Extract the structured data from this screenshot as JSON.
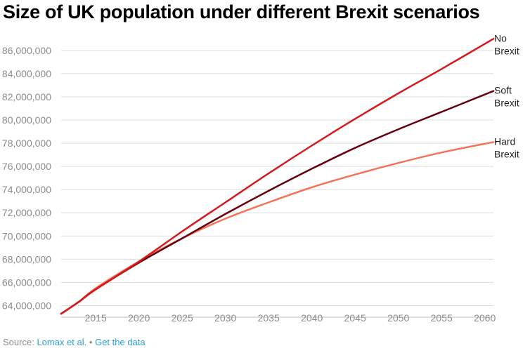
{
  "title": "Size of UK population under different Brexit scenarios",
  "footer": {
    "source_label": "Source:",
    "source_link": "Lomax et al.",
    "separator": "•",
    "data_link": "Get the data"
  },
  "chart_data": {
    "type": "line",
    "title": "Size of UK population under different Brexit scenarios",
    "xlabel": "",
    "ylabel": "",
    "xlim": [
      2011,
      2061
    ],
    "ylim": [
      63000000,
      87200000
    ],
    "x_ticks": [
      2015,
      2020,
      2025,
      2030,
      2035,
      2040,
      2045,
      2050,
      2055,
      2060
    ],
    "x_tick_labels": [
      "2015",
      "2020",
      "2025",
      "2030",
      "2035",
      "2040",
      "2045",
      "2050",
      "2055",
      "2060"
    ],
    "y_ticks": [
      64000000,
      66000000,
      68000000,
      70000000,
      72000000,
      74000000,
      76000000,
      78000000,
      80000000,
      82000000,
      84000000,
      86000000
    ],
    "y_tick_labels": [
      "64,000,000",
      "66,000,000",
      "68,000,000",
      "70,000,000",
      "72,000,000",
      "74,000,000",
      "76,000,000",
      "78,000,000",
      "80,000,000",
      "82,000,000",
      "84,000,000",
      "86,000,000"
    ],
    "grid": true,
    "series": [
      {
        "name": "No Brexit",
        "label_lines": [
          "No",
          "Brexit"
        ],
        "color": "#d7191c",
        "x": [
          2011,
          2013,
          2015,
          2020,
          2025,
          2030,
          2035,
          2040,
          2045,
          2050,
          2055,
          2061
        ],
        "y": [
          63300000,
          64300000,
          65400000,
          67800000,
          70400000,
          72900000,
          75400000,
          77800000,
          80100000,
          82300000,
          84400000,
          87000000
        ]
      },
      {
        "name": "Soft Brexit",
        "label_lines": [
          "Soft",
          "Brexit"
        ],
        "color": "#67000d",
        "x": [
          2011,
          2013,
          2015,
          2020,
          2025,
          2030,
          2035,
          2040,
          2045,
          2050,
          2055,
          2061
        ],
        "y": [
          63300000,
          64300000,
          65400000,
          67700000,
          69800000,
          71900000,
          73900000,
          75800000,
          77600000,
          79200000,
          80700000,
          82500000
        ]
      },
      {
        "name": "Hard Brexit",
        "label_lines": [
          "Hard",
          "Brexit"
        ],
        "color": "#f4735a",
        "x": [
          2011,
          2013,
          2015,
          2020,
          2025,
          2030,
          2035,
          2040,
          2045,
          2050,
          2055,
          2061
        ],
        "y": [
          63300000,
          64300000,
          65500000,
          67800000,
          69800000,
          71500000,
          72900000,
          74200000,
          75300000,
          76300000,
          77200000,
          78100000
        ]
      }
    ]
  }
}
